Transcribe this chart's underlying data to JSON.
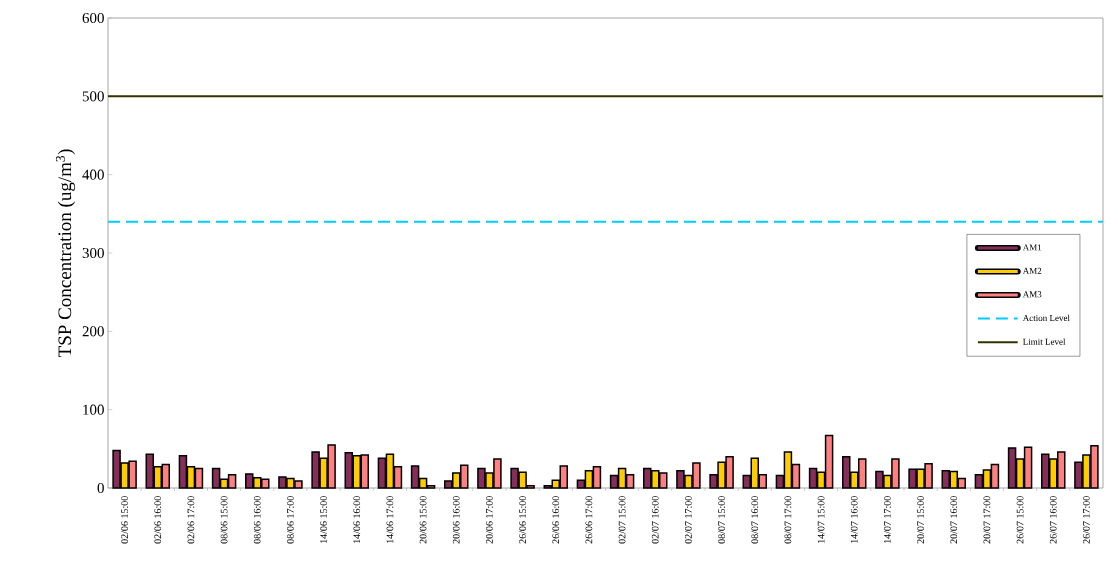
{
  "chart_data": {
    "type": "bar",
    "ylabel": "TSP Concentration (ug/m$^{3}$)",
    "categories": [
      "02/06 15:00",
      "02/06 16:00",
      "02/06 17:00",
      "08/06 15:00",
      "08/06 16:00",
      "08/06 17:00",
      "14/06 15:00",
      "14/06 16:00",
      "14/06 17:00",
      "20/06 15:00",
      "20/06 16:00",
      "20/06 17:00",
      "26/06 15:00",
      "26/06 16:00",
      "26/06 17:00",
      "02/07 15:00",
      "02/07 16:00",
      "02/07 17:00",
      "08/07 15:00",
      "08/07 16:00",
      "08/07 17:00",
      "14/07 15:00",
      "14/07 16:00",
      "14/07 17:00",
      "20/07 15:00",
      "20/07 16:00",
      "20/07 17:00",
      "26/07 15:00",
      "26/07 16:00",
      "26/07 17:00"
    ],
    "series": [
      {
        "name": "AM1",
        "color": "#862d59",
        "values": [
          48,
          43,
          41,
          25,
          18,
          14,
          46,
          45,
          38,
          28,
          9,
          25,
          25,
          3,
          10,
          16,
          25,
          22,
          17,
          16,
          16,
          25,
          40,
          21,
          24,
          22,
          17,
          51,
          43,
          33
        ]
      },
      {
        "name": "AM2",
        "color": "#ffcc00",
        "values": [
          32,
          27,
          27,
          11,
          13,
          12,
          38,
          41,
          43,
          12,
          19,
          19,
          20,
          10,
          22,
          25,
          22,
          16,
          33,
          38,
          46,
          20,
          20,
          16,
          24,
          21,
          23,
          37,
          37,
          42
        ]
      },
      {
        "name": "AM3",
        "color": "#ff8080",
        "values": [
          34,
          30,
          25,
          17,
          11,
          9,
          55,
          42,
          27,
          3,
          29,
          37,
          3,
          28,
          27,
          17,
          19,
          32,
          40,
          17,
          30,
          67,
          37,
          37,
          31,
          12,
          30,
          52,
          46,
          54
        ]
      }
    ],
    "ref_lines": [
      {
        "axis": "y",
        "value": 340,
        "label": "Action Level",
        "color": "#00ccff",
        "line_style": "dashed"
      },
      {
        "axis": "y",
        "value": 500,
        "label": "Limit Level",
        "color": "#333300",
        "line_style": "solid"
      }
    ],
    "ylim": [
      0,
      600
    ],
    "yticks": [
      0,
      100,
      200,
      300,
      400,
      500,
      600
    ],
    "grid": false,
    "legend": "right"
  }
}
